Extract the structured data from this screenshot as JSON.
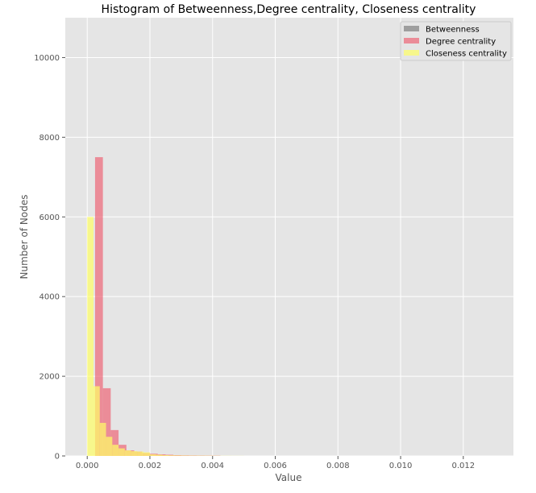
{
  "chart_data": {
    "type": "bar",
    "title": "Histogram of Betweenness,Degree centrality, Closeness centrality",
    "xlabel": "Value",
    "ylabel": "Number of Nodes",
    "xlim": [
      -0.0007,
      0.0136
    ],
    "ylim": [
      0,
      11000
    ],
    "xticks": [
      "0.000",
      "0.002",
      "0.004",
      "0.006",
      "0.008",
      "0.010",
      "0.012"
    ],
    "yticks": [
      "0",
      "2000",
      "4000",
      "6000",
      "8000",
      "10000"
    ],
    "grid": true,
    "legend_position": "top-right",
    "colors": {
      "background": "#e5e5e5",
      "grid": "#ffffff",
      "Betweenness": "#808080",
      "Degree centrality": "#ee6677",
      "Closeness centrality": "#ffff66"
    },
    "series": [
      {
        "name": "Betweenness",
        "bins": [],
        "counts": []
      },
      {
        "name": "Degree centrality",
        "bin_width": 0.00025,
        "bins": [
          0.0,
          0.00025,
          0.0005,
          0.00075,
          0.001,
          0.00125,
          0.0015,
          0.00175,
          0.002,
          0.00225,
          0.0025,
          0.00275,
          0.003,
          0.00325,
          0.0035,
          0.00375,
          0.004
        ],
        "counts": [
          0,
          7500,
          1700,
          650,
          280,
          140,
          110,
          75,
          55,
          40,
          30,
          20,
          15,
          12,
          10,
          8,
          6
        ]
      },
      {
        "name": "Closeness centrality",
        "bin_width": 0.0002,
        "bins": [
          0.0,
          0.0002,
          0.0004,
          0.0006,
          0.0008,
          0.001,
          0.0012,
          0.0014,
          0.0016,
          0.0018,
          0.002,
          0.0022,
          0.0024,
          0.0026,
          0.0028,
          0.003,
          0.0032,
          0.0034,
          0.0036,
          0.0038,
          0.004,
          0.0042,
          0.0044,
          0.0046,
          0.0048
        ],
        "counts": [
          6000,
          1750,
          830,
          480,
          280,
          190,
          140,
          120,
          110,
          90,
          40,
          30,
          20,
          15,
          12,
          10,
          8,
          7,
          6,
          5,
          4,
          3,
          3,
          2,
          2
        ]
      }
    ],
    "legend": [
      "Betweenness",
      "Degree centrality",
      "Closeness centrality"
    ]
  }
}
